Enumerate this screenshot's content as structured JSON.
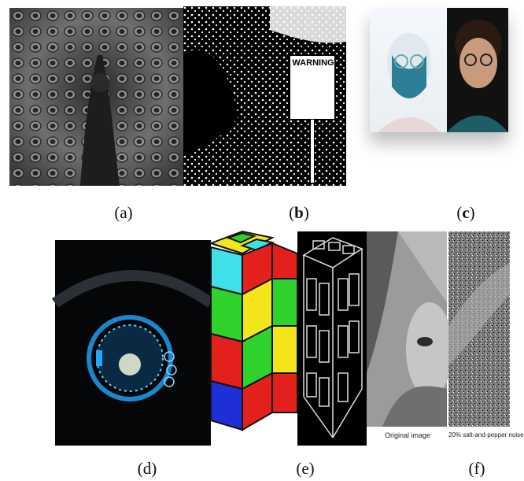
{
  "figure": {
    "captions": {
      "a": "(a)",
      "b_open": "(",
      "b_letter": "b",
      "b_close": ")",
      "c_open": "(",
      "c_letter": "c",
      "c_close": ")",
      "d": "(d)",
      "e": "(e)",
      "f": "(f)"
    },
    "panel_b": {
      "sign_text": "WARNING"
    },
    "panel_f": {
      "left_label": "Original image",
      "right_label": "20% salt-and-pepper noise"
    },
    "colors": {
      "cube_red": "#e3201b",
      "cube_green": "#2fd12b",
      "cube_yellow": "#f4e51a",
      "cube_blue": "#1f2fd8",
      "cube_cyan": "#3fe0e8",
      "gauge_blue": "#1ea7ff"
    }
  }
}
